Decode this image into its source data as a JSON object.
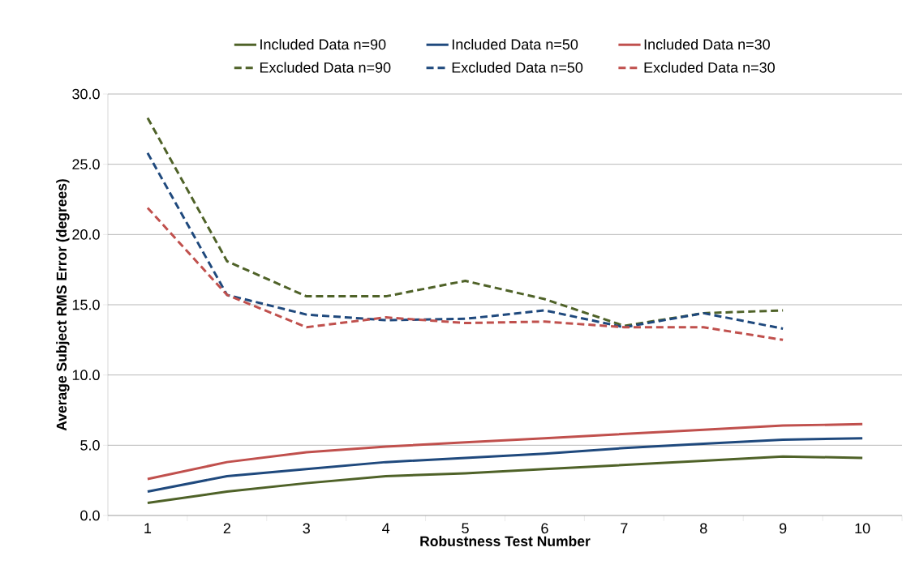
{
  "chart_data": {
    "type": "line",
    "xlabel": "Robustness Test Number",
    "ylabel": "Average Subject RMS Error (degrees)",
    "categories": [
      "1",
      "2",
      "3",
      "4",
      "5",
      "6",
      "7",
      "8",
      "9",
      "10"
    ],
    "series": [
      {
        "name": "Included Data n=90",
        "color": "#4f6228",
        "line_style": "solid",
        "values": [
          0.9,
          1.7,
          2.3,
          2.8,
          3.0,
          3.3,
          3.6,
          3.9,
          4.2,
          4.1
        ]
      },
      {
        "name": "Included Data n=50",
        "color": "#1f497d",
        "line_style": "solid",
        "values": [
          1.7,
          2.8,
          3.3,
          3.8,
          4.1,
          4.4,
          4.8,
          5.1,
          5.4,
          5.5
        ]
      },
      {
        "name": "Included Data n=30",
        "color": "#c0504d",
        "line_style": "solid",
        "values": [
          2.6,
          3.8,
          4.5,
          4.9,
          5.2,
          5.5,
          5.8,
          6.1,
          6.4,
          6.5
        ]
      },
      {
        "name": "Excluded Data n=90",
        "color": "#4f6228",
        "line_style": "dashed",
        "values": [
          28.3,
          18.1,
          15.6,
          15.6,
          16.7,
          15.4,
          13.5,
          14.4,
          14.6,
          null
        ]
      },
      {
        "name": "Excluded Data n=50",
        "color": "#1f497d",
        "line_style": "dashed",
        "values": [
          25.8,
          15.7,
          14.3,
          13.9,
          14.0,
          14.6,
          13.4,
          14.4,
          13.3,
          null
        ]
      },
      {
        "name": "Excluded Data n=30",
        "color": "#c0504d",
        "line_style": "dashed",
        "values": [
          21.9,
          15.7,
          13.4,
          14.1,
          13.7,
          13.8,
          13.4,
          13.4,
          12.5,
          null
        ]
      }
    ],
    "ylim": [
      0,
      30
    ],
    "yticks": [
      {
        "value": 0,
        "label": "0.0"
      },
      {
        "value": 5,
        "label": "5.0"
      },
      {
        "value": 10,
        "label": "10.0"
      },
      {
        "value": 15,
        "label": "15.0"
      },
      {
        "value": 20,
        "label": "20.0"
      },
      {
        "value": 25,
        "label": "25.0"
      },
      {
        "value": 30,
        "label": "30.0"
      }
    ],
    "grid": "y",
    "legend": "top",
    "marker": "none"
  }
}
